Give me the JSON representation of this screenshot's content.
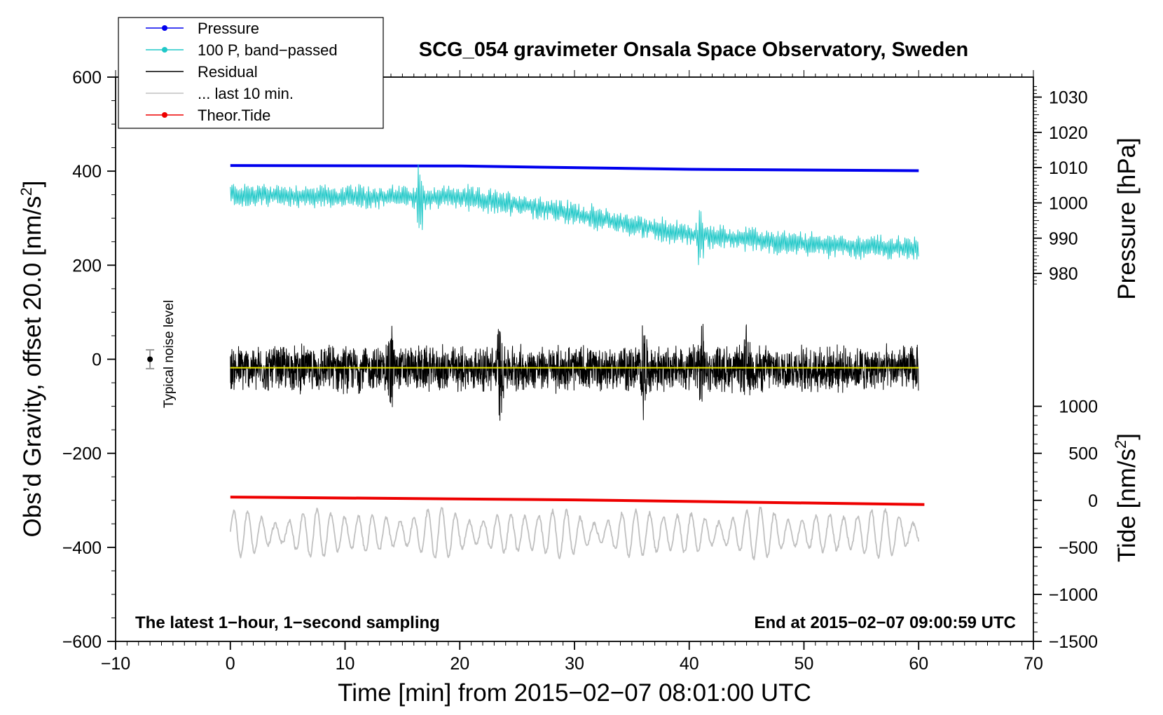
{
  "chart_data": {
    "type": "line",
    "title": "SCG_054 gravimeter Onsala Space Observatory, Sweden",
    "xlabel": "Time [min] from 2015−02−07 08:01:00 UTC",
    "ylabel": "Obs’d Gravity, offset 20.0 [nm/s2]",
    "ylabel_main": "Obs’d Gravity, offset 20.0 [nm/s",
    "ylabel_sup": "2",
    "ylabel_end": "]",
    "xlim": [
      -10,
      70
    ],
    "ylim": [
      -600,
      600
    ],
    "x_ticks": [
      "−10",
      "0",
      "10",
      "20",
      "30",
      "40",
      "50",
      "60",
      "70"
    ],
    "y_ticks": [
      "−600",
      "−400",
      "−200",
      "0",
      "200",
      "400",
      "600"
    ],
    "right_axis_pressure": {
      "label": "Pressure [hPa]",
      "ticks": [
        "980",
        "990",
        "1000",
        "1010",
        "1020",
        "1030"
      ],
      "range_hpa": [
        977,
        1033
      ]
    },
    "right_axis_tide": {
      "label": "Tide [nm/s2]",
      "label_main": "Tide [nm/s",
      "label_sup": "2",
      "label_end": "]",
      "ticks": [
        "−1500",
        "−1000",
        "−500",
        "0",
        "500",
        "1000"
      ],
      "range": [
        -1500,
        1000
      ]
    },
    "legend": [
      {
        "label": "Pressure",
        "color": "#0000ee",
        "marker": true
      },
      {
        "label": "100 P, band−passed",
        "color": "#20c8c8",
        "marker": true
      },
      {
        "label": "Residual",
        "color": "#000000",
        "marker": false
      },
      {
        "label": "... last 10 min.",
        "color": "#c0c0c0",
        "marker": false
      },
      {
        "label": "Theor.Tide",
        "color": "#ee0000",
        "marker": true
      }
    ],
    "legend_position": "top-left",
    "noise_label": "Typical noise level",
    "noise_marker": {
      "x": -7,
      "y": 0,
      "error": 20
    },
    "note_left": "The latest 1−hour, 1−second sampling",
    "note_right": "End at 2015−02−07 09:00:59 UTC",
    "series": [
      {
        "name": "Pressure",
        "color": "#0000ee",
        "x": [
          0,
          20,
          40,
          60
        ],
        "y": [
          412,
          411,
          404,
          401
        ]
      },
      {
        "name": "100 P, band−passed",
        "color": "#20c8c8",
        "x": [
          0,
          10,
          20,
          25,
          30,
          35,
          40,
          45,
          50,
          55,
          60
        ],
        "y": [
          350,
          345,
          345,
          330,
          310,
          285,
          265,
          255,
          245,
          240,
          235
        ],
        "noise_amplitude": 30,
        "x_spikes": [
          16.5,
          41
        ]
      },
      {
        "name": "Residual",
        "color": "#000000",
        "x": [
          0,
          60
        ],
        "y": [
          -20,
          -20
        ],
        "noise_amplitude": 55,
        "x_spikes": [
          14,
          23.5,
          36,
          41,
          45
        ]
      },
      {
        "name": "Residual mean",
        "color": "#e6e600",
        "x": [
          0,
          60
        ],
        "y": [
          -18,
          -18
        ]
      },
      {
        "name": "... last 10 min.",
        "color": "#c0c0c0",
        "x": [
          0,
          60
        ],
        "y": [
          -370,
          -370
        ],
        "noise_amplitude": 55
      },
      {
        "name": "Theor.Tide",
        "color": "#ee0000",
        "x": [
          0,
          30,
          60.5
        ],
        "y": [
          -293,
          -299,
          -309
        ]
      }
    ]
  }
}
